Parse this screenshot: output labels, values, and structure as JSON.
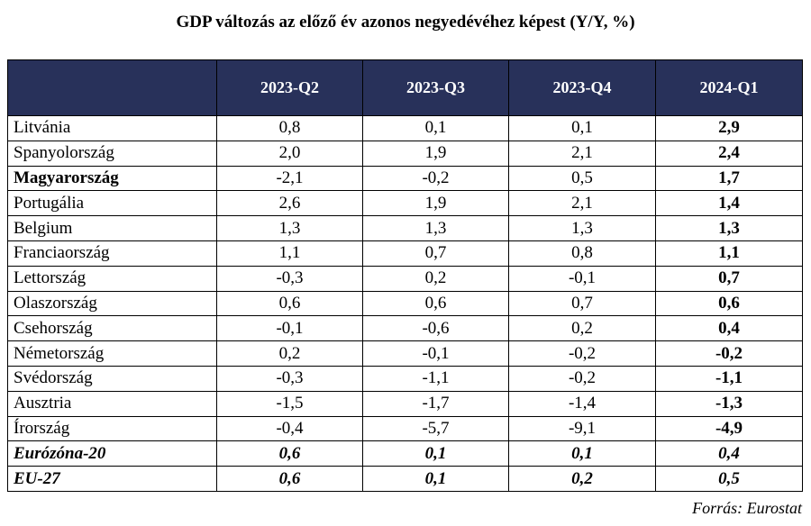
{
  "chart_data": {
    "type": "table",
    "title": "GDP változás az előző év azonos negyedévéhez képest (Y/Y, %)",
    "columns": [
      "",
      "2023-Q2",
      "2023-Q3",
      "2023-Q4",
      "2024-Q1"
    ],
    "rows": [
      {
        "country": "Litvánia",
        "values": [
          "0,8",
          "0,1",
          "0,1",
          "2,9"
        ],
        "bold": false
      },
      {
        "country": "Spanyolország",
        "values": [
          "2,0",
          "1,9",
          "2,1",
          "2,4"
        ],
        "bold": false
      },
      {
        "country": "Magyarország",
        "values": [
          "-2,1",
          "-0,2",
          "0,5",
          "1,7"
        ],
        "bold": true
      },
      {
        "country": "Portugália",
        "values": [
          "2,6",
          "1,9",
          "2,1",
          "1,4"
        ],
        "bold": false
      },
      {
        "country": "Belgium",
        "values": [
          "1,3",
          "1,3",
          "1,3",
          "1,3"
        ],
        "bold": false
      },
      {
        "country": "Franciaország",
        "values": [
          "1,1",
          "0,7",
          "0,8",
          "1,1"
        ],
        "bold": false
      },
      {
        "country": "Lettország",
        "values": [
          "-0,3",
          "0,2",
          "-0,1",
          "0,7"
        ],
        "bold": false
      },
      {
        "country": "Olaszország",
        "values": [
          "0,6",
          "0,6",
          "0,7",
          "0,6"
        ],
        "bold": false
      },
      {
        "country": "Csehország",
        "values": [
          "-0,1",
          "-0,6",
          "0,2",
          "0,4"
        ],
        "bold": false
      },
      {
        "country": "Németország",
        "values": [
          "0,2",
          "-0,1",
          "-0,2",
          "-0,2"
        ],
        "bold": false
      },
      {
        "country": "Svédország",
        "values": [
          "-0,3",
          "-1,1",
          "-0,2",
          "-1,1"
        ],
        "bold": false
      },
      {
        "country": "Ausztria",
        "values": [
          "-1,5",
          "-1,7",
          "-1,4",
          "-1,3"
        ],
        "bold": false
      },
      {
        "country": "Írország",
        "values": [
          "-0,4",
          "-5,7",
          "-9,1",
          "-4,9"
        ],
        "bold": false
      },
      {
        "country": "Eurózóna-20",
        "values": [
          "0,6",
          "0,1",
          "0,1",
          "0,4"
        ],
        "bold": true,
        "total": true
      },
      {
        "country": "EU-27",
        "values": [
          "0,6",
          "0,1",
          "0,2",
          "0,5"
        ],
        "bold": true,
        "total": true
      }
    ],
    "source": "Forrás: Eurostat"
  },
  "colors": {
    "header_bg": "#28315a",
    "header_text": "#ffffff"
  }
}
